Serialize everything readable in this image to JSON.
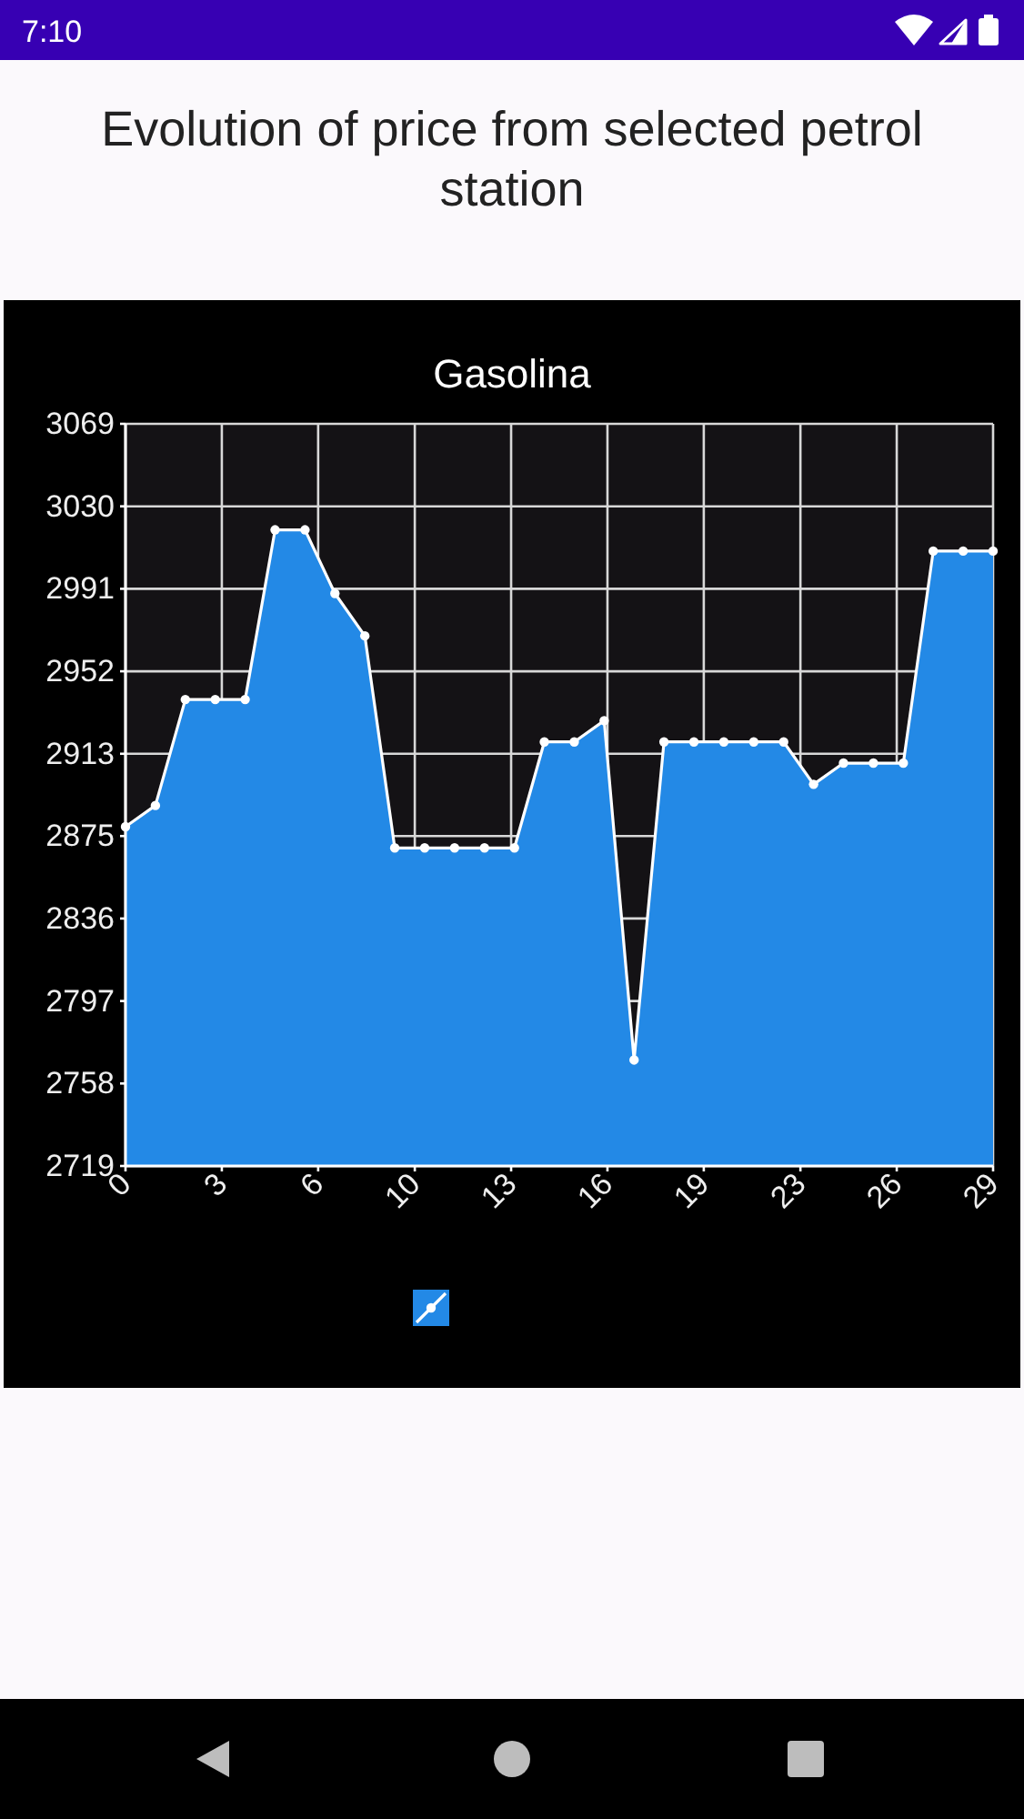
{
  "chart_data": {
    "type": "area",
    "title": "Evolution of price from selected petrol station",
    "subtitle": "Gasolina",
    "annotations": [
      "7:10"
    ],
    "x": [
      0,
      1,
      2,
      3,
      4,
      5,
      6,
      7,
      8,
      9,
      10,
      11,
      12,
      13,
      14,
      15,
      16,
      17,
      18,
      19,
      20,
      21,
      22,
      23,
      24,
      25,
      26,
      27,
      28,
      29
    ],
    "series": [
      {
        "color": "#2389e6",
        "values": [
          2879,
          2889,
          2939,
          2939,
          2939,
          3019,
          3019,
          2989,
          2969,
          2869,
          2869,
          2869,
          2869,
          2869,
          2919,
          2919,
          2929,
          2769,
          2919,
          2919,
          2919,
          2919,
          2919,
          2899,
          2909,
          2909,
          2909,
          3009,
          3009,
          3009
        ]
      }
    ],
    "xlim": [
      0,
      29
    ],
    "xticks": [
      0,
      {
        "value": 3.22,
        "label": "3"
      },
      {
        "value": 6.44,
        "label": "6"
      },
      {
        "value": 9.67,
        "label": "10"
      },
      {
        "value": 12.89,
        "label": "13"
      },
      {
        "value": 16.11,
        "label": "16"
      },
      {
        "value": 19.33,
        "label": "19"
      },
      {
        "value": 22.56,
        "label": "23"
      },
      {
        "value": 25.78,
        "label": "26"
      },
      29
    ],
    "ylim": [
      2719,
      3069
    ],
    "yticks": [
      2719,
      {
        "value": 2757.9,
        "label": "2758"
      },
      {
        "value": 2796.8,
        "label": "2797"
      },
      {
        "value": 2835.7,
        "label": "2836"
      },
      {
        "value": 2874.6,
        "label": "2875"
      },
      {
        "value": 2913.4,
        "label": "2913"
      },
      {
        "value": 2952.3,
        "label": "2952"
      },
      {
        "value": 2991.2,
        "label": "2991"
      },
      {
        "value": 3030.1,
        "label": "3030"
      },
      3069
    ],
    "grid": true,
    "marker": "circle"
  }
}
